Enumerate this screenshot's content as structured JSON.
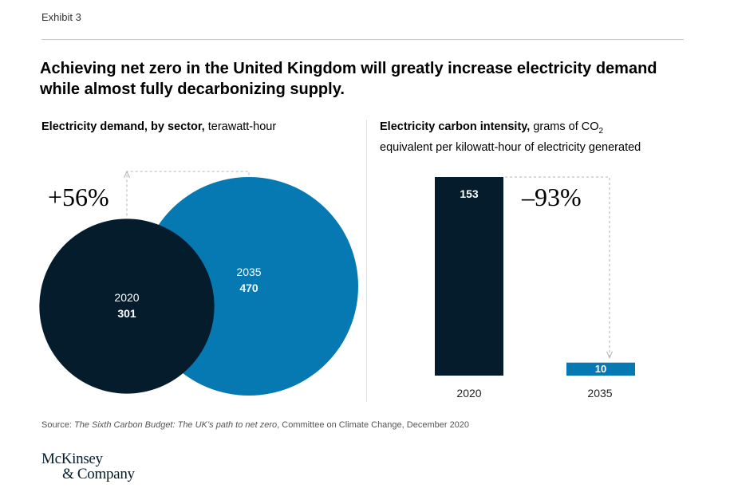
{
  "exhibit": "Exhibit 3",
  "headline": "Achieving net zero in the United Kingdom will greatly increase electricity demand while almost fully decarbonizing supply.",
  "colors": {
    "dark": "#051c2c",
    "blue": "#0679b3",
    "line": "#b3b3b3"
  },
  "chart_data": [
    {
      "type": "bubble",
      "title_bold": "Electricity demand, by sector,",
      "title_unit": " terawatt-hour",
      "categories": [
        "2020",
        "2035"
      ],
      "values": [
        301,
        470
      ],
      "value_labels": [
        "301",
        "470"
      ],
      "change_label": "+56%"
    },
    {
      "type": "bar",
      "title_bold": "Electricity carbon intensity,",
      "title_unit_1": " grams of CO",
      "title_sub": "2",
      "title_unit_2": "equivalent per kilowatt-hour of electricity generated",
      "categories": [
        "2020",
        "2035"
      ],
      "values": [
        153,
        10
      ],
      "value_labels": [
        "153",
        "10"
      ],
      "change_label": "–93%"
    }
  ],
  "source": {
    "prefix": "Source: ",
    "title": "The Sixth Carbon Budget: The UK’s path to net zero",
    "suffix": ", Committee on Climate Change, December 2020"
  },
  "logo": {
    "line1": "McKinsey",
    "line2": "& Company"
  }
}
